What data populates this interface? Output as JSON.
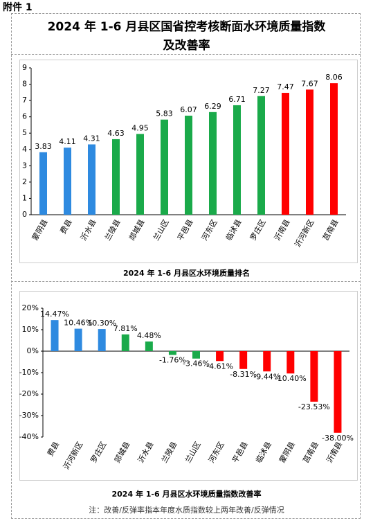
{
  "header": {
    "attachment": "附件 1",
    "title": [
      "2024 年 1-6 月县区国省控考核断面水环境质量指数",
      "及改善率"
    ]
  },
  "chart_data": [
    {
      "type": "bar",
      "title": "2024 年 1-6 月县区水环境质量排名",
      "categories": [
        "蒙阴县",
        "费县",
        "沂水县",
        "兰陵县",
        "郯城县",
        "兰山区",
        "平邑县",
        "河东区",
        "临沭县",
        "罗庄区",
        "沂南县",
        "沂河新区",
        "莒南县"
      ],
      "values": [
        3.83,
        4.11,
        4.31,
        4.63,
        4.95,
        5.83,
        6.07,
        6.29,
        6.71,
        7.27,
        7.47,
        7.67,
        8.06
      ],
      "colors": [
        "#2e8ae0",
        "#2e8ae0",
        "#2e8ae0",
        "#1aaa4a",
        "#1aaa4a",
        "#1aaa4a",
        "#1aaa4a",
        "#1aaa4a",
        "#1aaa4a",
        "#1aaa4a",
        "#ff0000",
        "#ff0000",
        "#ff0000"
      ],
      "ylim": [
        0,
        9
      ],
      "yticks": [
        0,
        1,
        2,
        3,
        4,
        5,
        6,
        7,
        8,
        9
      ]
    },
    {
      "type": "bar",
      "title": "2024 年 1-6 月县区水环境质量指数改善率",
      "categories": [
        "费县",
        "沂河新区",
        "罗庄区",
        "郯城县",
        "沂水县",
        "兰陵县",
        "兰山区",
        "河东区",
        "平邑县",
        "临沭县",
        "蒙阴县",
        "莒南县",
        "沂南县"
      ],
      "values": [
        14.47,
        10.46,
        10.3,
        7.81,
        4.48,
        -1.76,
        -3.46,
        -4.61,
        -8.31,
        -9.44,
        -10.4,
        -23.53,
        -38.0
      ],
      "value_labels": [
        "14.47%",
        "10.46%",
        "10.30%",
        "7.81%",
        "4.48%",
        "-1.76%",
        "-3.46%",
        "-4.61%",
        "-8.31%",
        "-9.44%",
        "-10.40%",
        "-23.53%",
        "-38.00%"
      ],
      "colors": [
        "#2e8ae0",
        "#2e8ae0",
        "#2e8ae0",
        "#1aaa4a",
        "#1aaa4a",
        "#1aaa4a",
        "#1aaa4a",
        "#ff0000",
        "#ff0000",
        "#ff0000",
        "#ff0000",
        "#ff0000",
        "#ff0000"
      ],
      "ylim": [
        -40,
        20
      ],
      "yticks": [
        {
          "value": 20,
          "label": "20%"
        },
        {
          "value": 10,
          "label": "10%"
        },
        {
          "value": 0,
          "label": "0%"
        },
        {
          "value": -10,
          "label": "-10%"
        },
        {
          "value": -20,
          "label": "-20%"
        },
        {
          "value": -30,
          "label": "-30%"
        },
        {
          "value": -40,
          "label": "-40%"
        }
      ]
    }
  ],
  "note": "注：改善/反弹率指本年度水质指数较上两年改善/反弹情况"
}
